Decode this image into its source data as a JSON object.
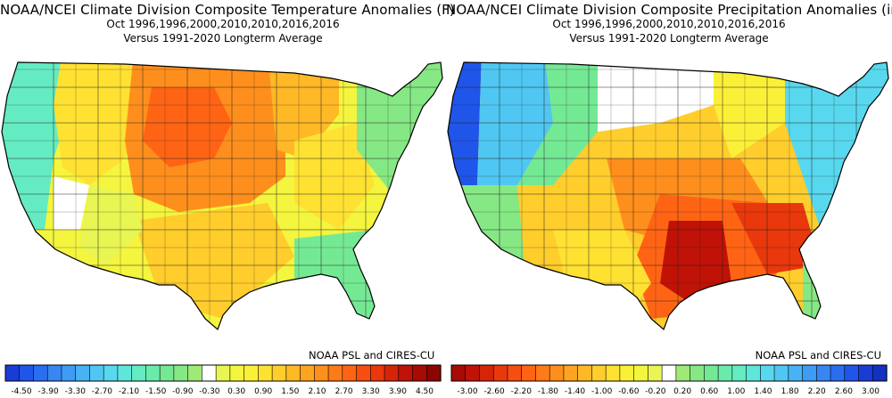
{
  "panels": [
    {
      "title": "NOAA/NCEI Climate Division Composite Temperature Anomalies (F)",
      "subtitle": "Oct  1996,1996,2000,2010,2010,2016,2016",
      "baseline": "Versus 1991-2020 Longterm Average",
      "credit": "NOAA PSL and CIRES-CU",
      "legend_ticks": [
        "-4.50",
        "-3.90",
        "-3.30",
        "-2.70",
        "-2.10",
        "-1.50",
        "-0.90",
        "-0.30",
        "0.30",
        "0.90",
        "1.50",
        "2.10",
        "2.70",
        "3.30",
        "3.90",
        "4.50"
      ],
      "colors": [
        "#1a3cd6",
        "#1f55e8",
        "#2a6ef0",
        "#3886f2",
        "#3e9cf5",
        "#48b2f5",
        "#50c7f2",
        "#58d8ee",
        "#5fe6dc",
        "#64ebc2",
        "#6aebaa",
        "#74e994",
        "#86e884",
        "#9fe976",
        "#ffffff",
        "#e8f552",
        "#f4f53e",
        "#fbf038",
        "#ffe132",
        "#ffcd2c",
        "#ffb826",
        "#ffa420",
        "#ff8f1c",
        "#ff7a18",
        "#ff6414",
        "#f64e10",
        "#e8380c",
        "#d62408",
        "#c01206",
        "#a80a04",
        "#8c0502"
      ],
      "map_fill_legend": {
        "north_plains": "#ff6414",
        "plains": "#ff8f1c",
        "southwest": "#ffe132",
        "east": "#f4f53e",
        "coast": "#74e994",
        "far_west": "#64ebc2"
      }
    },
    {
      "title": "NOAA/NCEI Climate Division Composite Precipitation Anomalies (in)",
      "subtitle": "Oct  1996,1996,2000,2010,2010,2016,2016",
      "baseline": "Versus 1991-2020 Longterm Average",
      "credit": "NOAA PSL and CIRES-CU",
      "legend_ticks": [
        "-3.00",
        "-2.60",
        "-2.20",
        "-1.80",
        "-1.40",
        "-1.00",
        "-0.60",
        "-0.20",
        "0.20",
        "0.60",
        "1.00",
        "1.40",
        "1.80",
        "2.20",
        "2.60",
        "3.00"
      ],
      "colors": [
        "#a80a04",
        "#c01206",
        "#d62408",
        "#e8380c",
        "#f64e10",
        "#ff6414",
        "#ff7a18",
        "#ff8f1c",
        "#ffa420",
        "#ffb826",
        "#ffcd2c",
        "#ffe132",
        "#fbf038",
        "#f4f53e",
        "#e8f552",
        "#ffffff",
        "#9fe976",
        "#86e884",
        "#74e994",
        "#6aebaa",
        "#64ebc2",
        "#5fe6dc",
        "#58d8ee",
        "#50c7f2",
        "#48b2f5",
        "#3e9cf5",
        "#3886f2",
        "#2a6ef0",
        "#1f55e8",
        "#1a3cd6",
        "#1430c0"
      ],
      "map_fill_legend": {
        "southeast": "#d62408",
        "south": "#ff7a18",
        "middle": "#ffcd2c",
        "west": "#86e884",
        "northwest": "#2a6ef0",
        "northeast": "#58d8ee"
      }
    }
  ]
}
